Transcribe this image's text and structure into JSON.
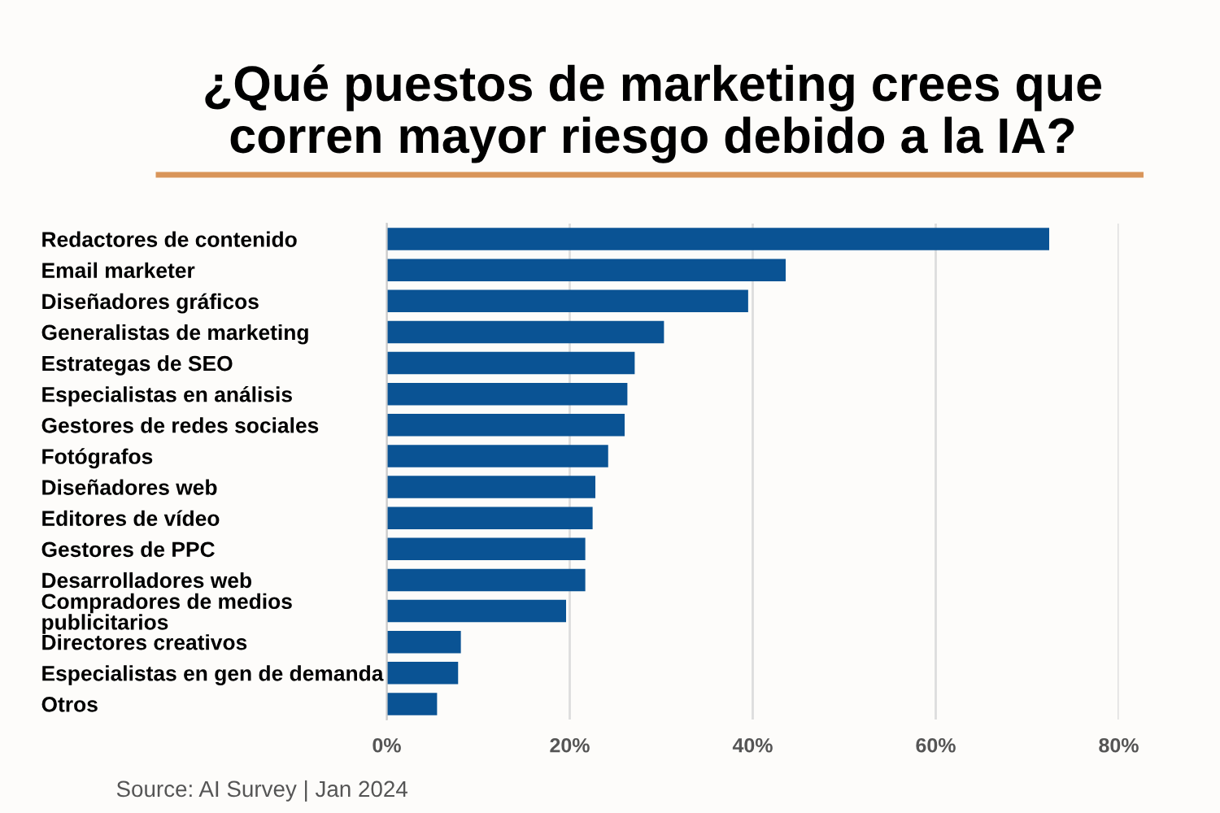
{
  "chart_data": {
    "type": "bar",
    "orientation": "horizontal",
    "title": "¿Qué puestos de marketing crees que\ncorren mayor riesgo debido a la IA?",
    "categories": [
      "Redactores de contenido",
      "Email marketer",
      "Diseñadores gráficos",
      "Generalistas de marketing",
      "Estrategas de SEO",
      "Especialistas en análisis",
      "Gestores de redes sociales",
      "Fotógrafos",
      "Diseñadores web",
      "Editores de vídeo",
      "Gestores de PPC",
      "Desarrolladores web",
      "Compradores de medios\npublicitarios",
      "Directores creativos",
      "Especialistas en gen de demanda",
      "Otros"
    ],
    "values": [
      72.4,
      43.6,
      39.5,
      30.3,
      27.1,
      26.3,
      26.0,
      24.2,
      22.8,
      22.5,
      21.7,
      21.7,
      19.6,
      8.1,
      7.8,
      5.5
    ],
    "color": "#0a5394",
    "xlim": [
      0,
      80
    ],
    "xticks": [
      {
        "value": 0,
        "label": "0%"
      },
      {
        "value": 20,
        "label": "20%"
      },
      {
        "value": 40,
        "label": "40%"
      },
      {
        "value": 60,
        "label": "60%"
      },
      {
        "value": 80,
        "label": "80%"
      }
    ],
    "grid": "x",
    "annotations": [
      "Source: AI Survey | Jan 2024"
    ]
  }
}
